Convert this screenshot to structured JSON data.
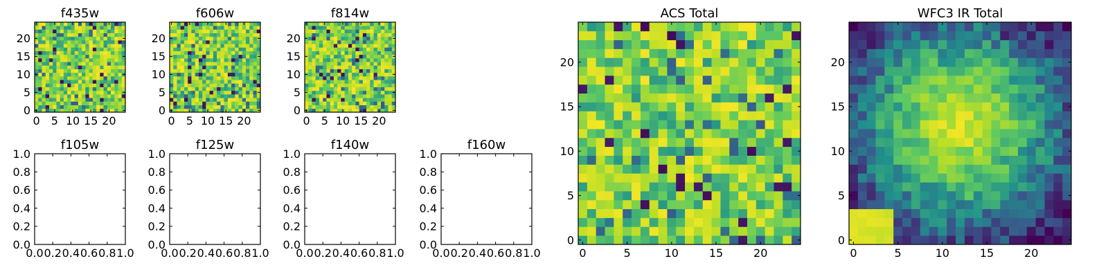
{
  "chart_data": [
    {
      "type": "heatmap",
      "title": "f435w",
      "grid_size": 25,
      "xticks": [
        "0",
        "5",
        "10",
        "15",
        "20"
      ],
      "yticks": [
        "0",
        "5",
        "10",
        "15",
        "20"
      ],
      "pattern": "noise",
      "seed": 11
    },
    {
      "type": "heatmap",
      "title": "f606w",
      "grid_size": 25,
      "xticks": [
        "0",
        "5",
        "10",
        "15",
        "20"
      ],
      "yticks": [
        "0",
        "5",
        "10",
        "15",
        "20"
      ],
      "pattern": "noise",
      "seed": 23
    },
    {
      "type": "heatmap",
      "title": "f814w",
      "grid_size": 25,
      "xticks": [
        "0",
        "5",
        "10",
        "15",
        "20"
      ],
      "yticks": [
        "0",
        "5",
        "10",
        "15",
        "20"
      ],
      "pattern": "noise",
      "seed": 37
    },
    {
      "type": "empty",
      "title": "f105w",
      "ticks": [
        "0.0",
        "0.2",
        "0.4",
        "0.6",
        "0.8",
        "1.0"
      ]
    },
    {
      "type": "empty",
      "title": "f125w",
      "ticks": [
        "0.0",
        "0.2",
        "0.4",
        "0.6",
        "0.8",
        "1.0"
      ]
    },
    {
      "type": "empty",
      "title": "f140w",
      "ticks": [
        "0.0",
        "0.2",
        "0.4",
        "0.6",
        "0.8",
        "1.0"
      ]
    },
    {
      "type": "empty",
      "title": "f160w",
      "ticks": [
        "0.0",
        "0.2",
        "0.4",
        "0.6",
        "0.8",
        "1.0"
      ]
    },
    {
      "type": "heatmap",
      "title": "ACS Total",
      "grid_size": 25,
      "xticks": [
        "0",
        "5",
        "10",
        "15",
        "20"
      ],
      "yticks": [
        "0",
        "5",
        "10",
        "15",
        "20"
      ],
      "pattern": "noise",
      "seed": 53
    },
    {
      "type": "heatmap",
      "title": "WFC3 IR Total",
      "grid_size": 25,
      "xticks": [
        "0",
        "5",
        "10",
        "15",
        "20"
      ],
      "yticks": [
        "0",
        "5",
        "10",
        "15",
        "20"
      ],
      "pattern": "blob",
      "seed": 71
    }
  ],
  "colormap": [
    "#440154",
    "#3b528b",
    "#21918c",
    "#5ec962",
    "#bddf26",
    "#fde725"
  ]
}
